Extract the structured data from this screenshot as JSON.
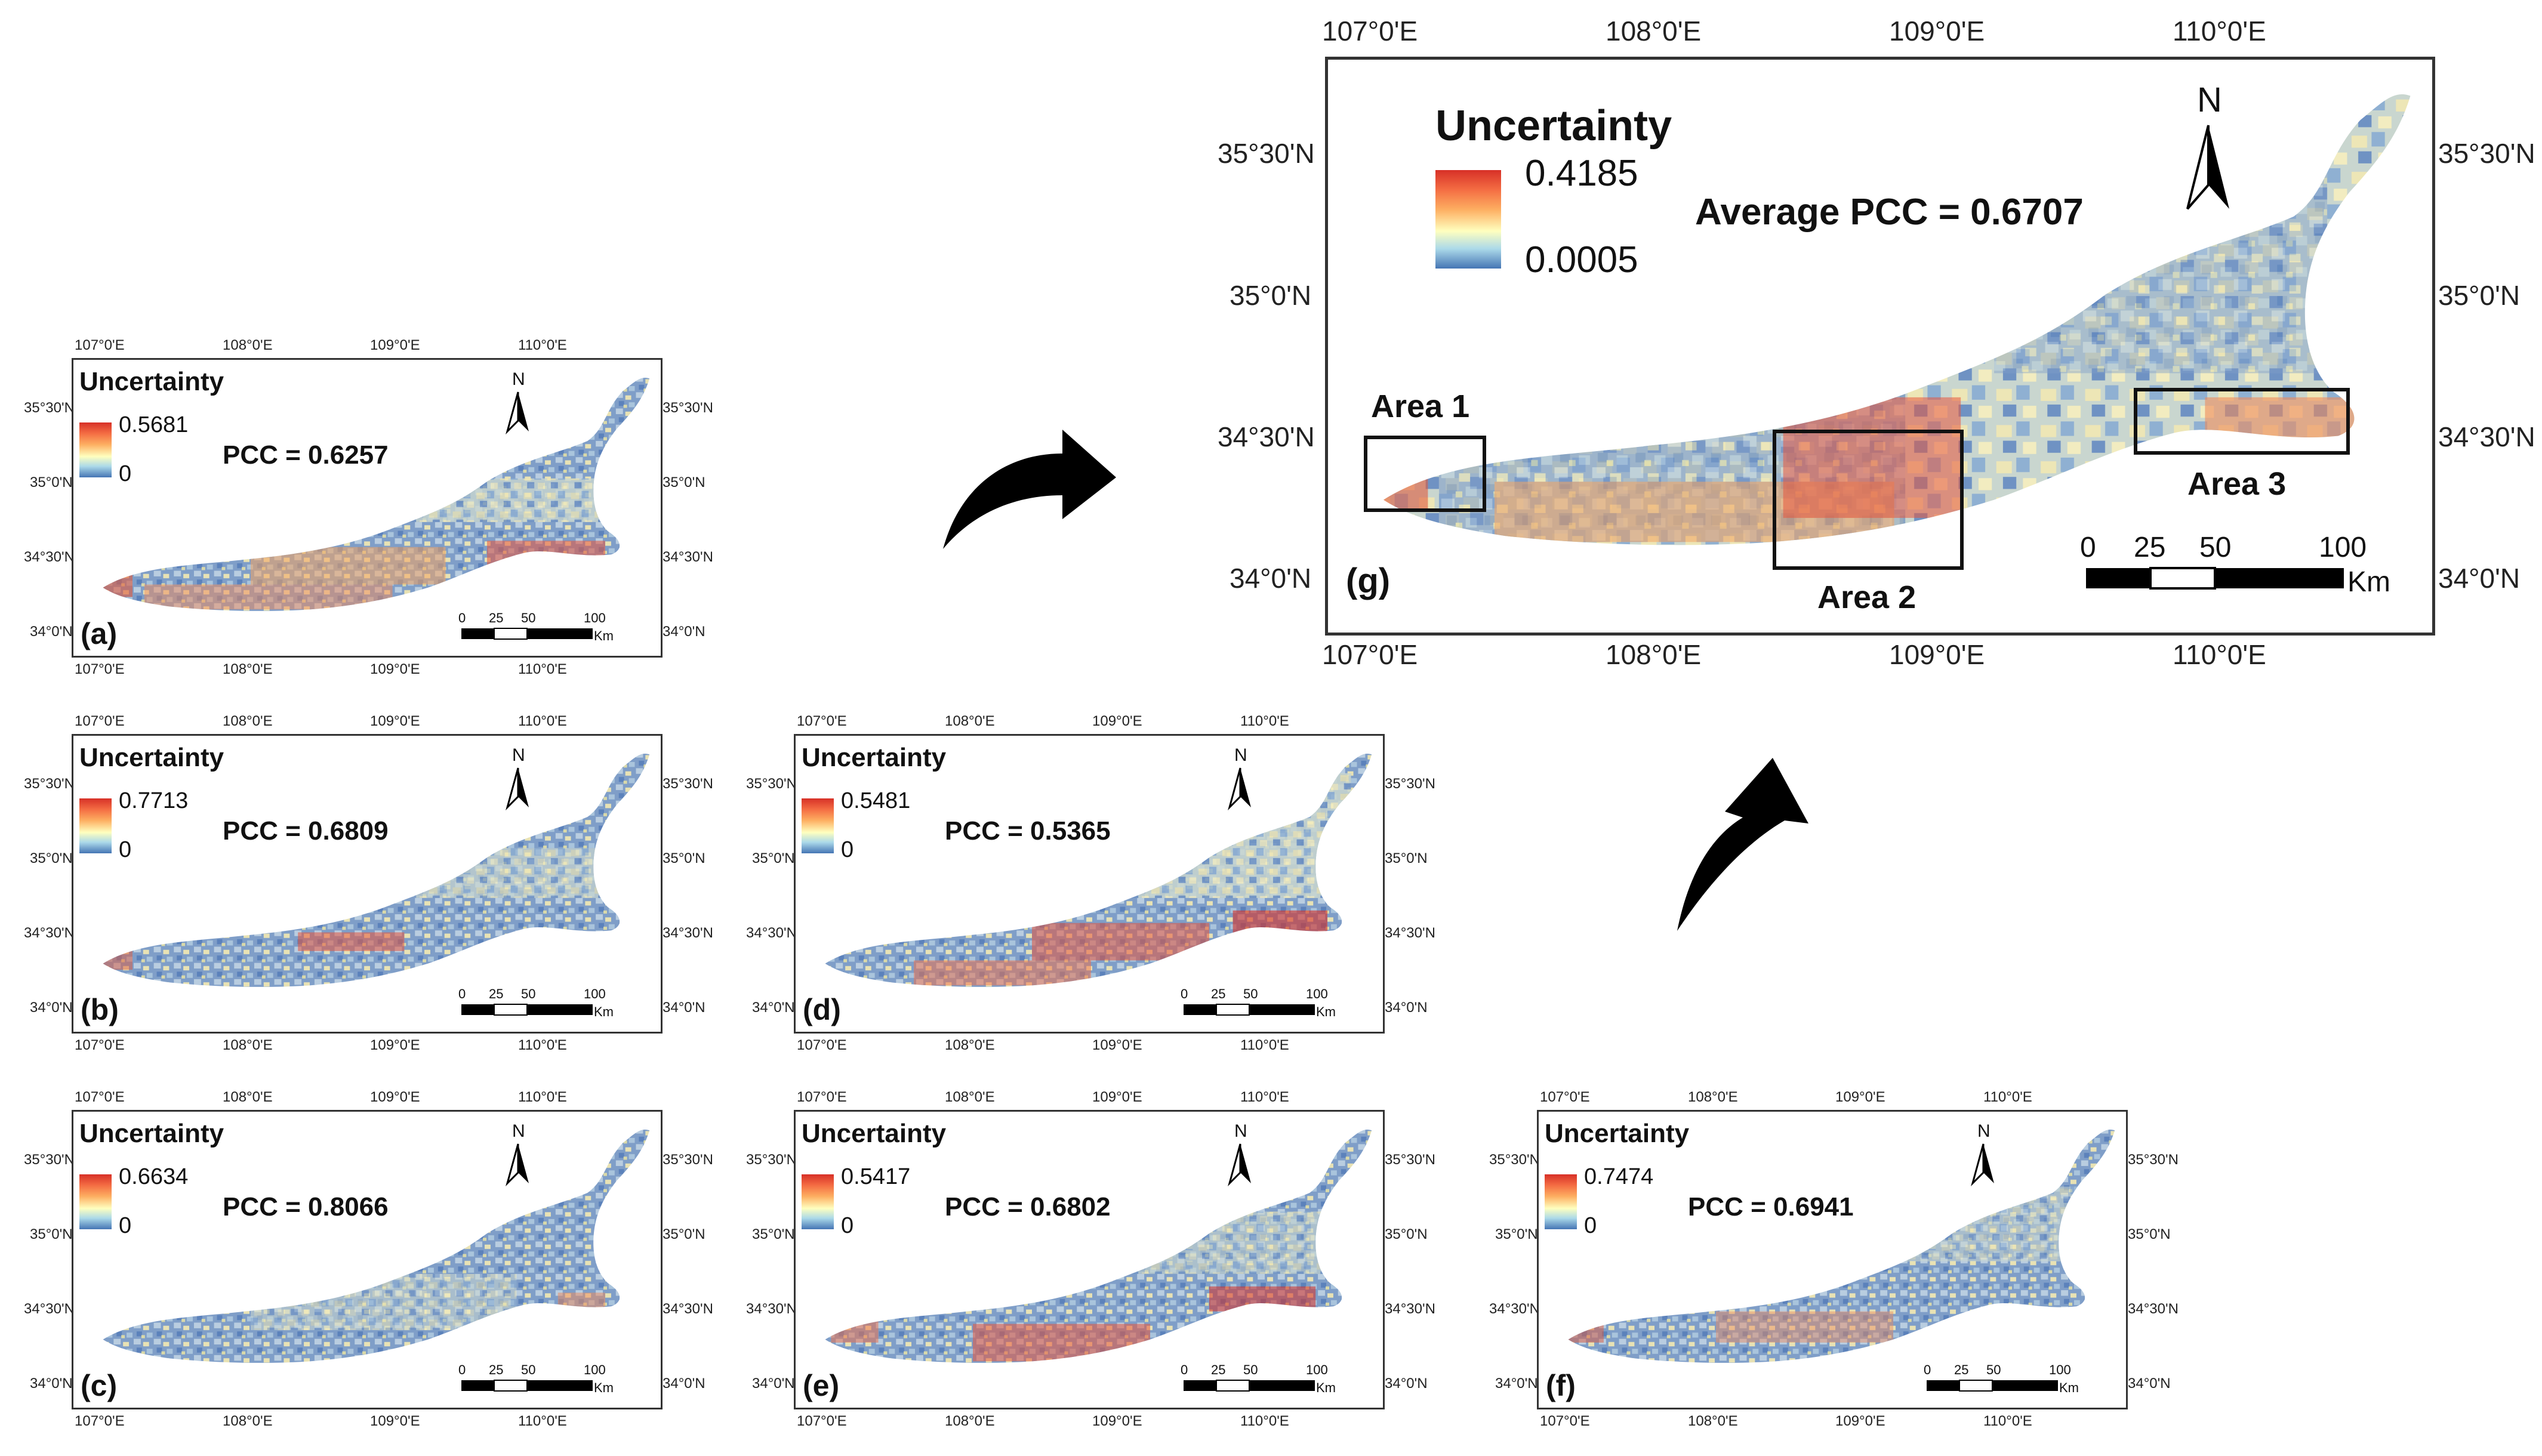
{
  "map_common": {
    "lon_ticks": [
      "107°0'E",
      "108°0'E",
      "109°0'E",
      "110°0'E"
    ],
    "lat_ticks": [
      "35°30'N",
      "35°0'N",
      "34°30'N",
      "34°0'N"
    ],
    "legend_title": "Uncertainty",
    "north_label": "N",
    "scale_ticks": [
      "0",
      "25",
      "50",
      "100"
    ],
    "scale_unit": "Km",
    "colors": {
      "high": "#d73027",
      "mid": "#ffffbf",
      "low": "#4575b4"
    }
  },
  "panels": [
    {
      "id": "a",
      "label": "(a)",
      "legend_max": "0.5681",
      "legend_min": "0",
      "pcc": "PCC = 0.6257"
    },
    {
      "id": "b",
      "label": "(b)",
      "legend_max": "0.7713",
      "legend_min": "0",
      "pcc": "PCC = 0.6809"
    },
    {
      "id": "c",
      "label": "(c)",
      "legend_max": "0.6634",
      "legend_min": "0",
      "pcc": "PCC = 0.8066"
    },
    {
      "id": "d",
      "label": "(d)",
      "legend_max": "0.5481",
      "legend_min": "0",
      "pcc": "PCC = 0.5365"
    },
    {
      "id": "e",
      "label": "(e)",
      "legend_max": "0.5417",
      "legend_min": "0",
      "pcc": "PCC = 0.6802"
    },
    {
      "id": "f",
      "label": "(f)",
      "legend_max": "0.7474",
      "legend_min": "0",
      "pcc": "PCC = 0.6941"
    }
  ],
  "main_panel": {
    "label": "(g)",
    "legend_max": "0.4185",
    "legend_min": "0.0005",
    "pcc": "Average PCC = 0.6707",
    "areas": [
      "Area 1",
      "Area 2",
      "Area 3"
    ]
  }
}
